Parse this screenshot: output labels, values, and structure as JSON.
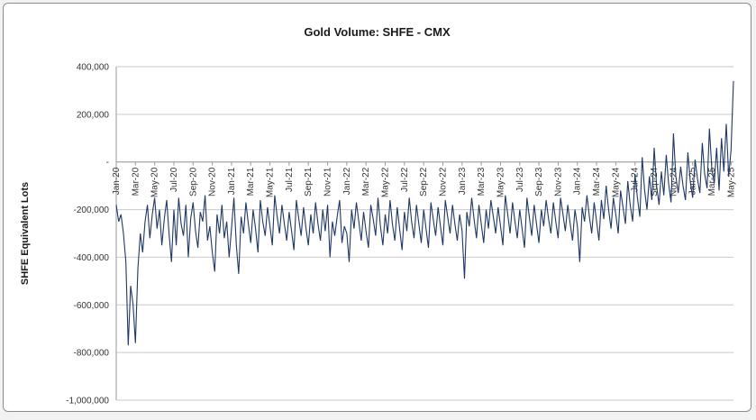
{
  "chart_data": {
    "type": "line",
    "title": "Gold Volume: SHFE - CMX",
    "xlabel": "",
    "ylabel": "SHFE Equivalent Lots",
    "ylim": [
      -1000000,
      400000
    ],
    "y_tick_interval": 200000,
    "y_tick_labels": [
      "400,000",
      "200,000",
      "-",
      "-200,000",
      "-400,000",
      "-600,000",
      "-800,000",
      "-1,000,000"
    ],
    "x_tick_labels": [
      "Jan-20",
      "Mar-20",
      "May-20",
      "Jul-20",
      "Sep-20",
      "Nov-20",
      "Jan-21",
      "Mar-21",
      "May-21",
      "Jul-21",
      "Sep-21",
      "Nov-21",
      "Jan-22",
      "Mar-22",
      "May-22",
      "Jul-22",
      "Sep-22",
      "Nov-22",
      "Jan-23",
      "Mar-23",
      "May-23",
      "Jul-23",
      "Sep-23",
      "Nov-23",
      "Jan-24",
      "Mar-24",
      "May-24",
      "Jul-24",
      "Sep-24",
      "Nov-24",
      "Jan-25",
      "Mar-25",
      "May-25"
    ],
    "points_per_label": 8,
    "grid": true,
    "legend": false,
    "colors": {
      "line": "#1f3864",
      "grid": "#c9c9c9",
      "axis": "#9a9a9a",
      "text": "#333333"
    },
    "series": [
      {
        "name": "SHFE - CMX gold volume difference",
        "color": "#1f3864",
        "value_scale": 1000,
        "values": [
          -180,
          -250,
          -220,
          -300,
          -420,
          -770,
          -520,
          -600,
          -760,
          -450,
          -300,
          -380,
          -250,
          -180,
          -320,
          -220,
          -150,
          -280,
          -200,
          -350,
          -240,
          -160,
          -300,
          -420,
          -200,
          -350,
          -150,
          -260,
          -310,
          -180,
          -400,
          -240,
          -170,
          -290,
          -360,
          -210,
          -250,
          -140,
          -330,
          -270,
          -380,
          -460,
          -220,
          -300,
          -180,
          -320,
          -250,
          -400,
          -280,
          -150,
          -350,
          -470,
          -230,
          -300,
          -170,
          -260,
          -340,
          -200,
          -280,
          -380,
          -160,
          -250,
          -310,
          -190,
          -270,
          -350,
          -140,
          -230,
          -300,
          -180,
          -260,
          -330,
          -210,
          -290,
          -370,
          -160,
          -240,
          -310,
          -190,
          -280,
          -350,
          -220,
          -300,
          -170,
          -260,
          -330,
          -200,
          -290,
          -180,
          -400,
          -250,
          -310,
          -230,
          -160,
          -340,
          -270,
          -300,
          -420,
          -200,
          -280,
          -170,
          -250,
          -330,
          -210,
          -290,
          -360,
          -180,
          -240,
          -310,
          -150,
          -270,
          -350,
          -220,
          -300,
          -160,
          -260,
          -330,
          -190,
          -280,
          -370,
          -210,
          -290,
          -150,
          -250,
          -320,
          -180,
          -260,
          -340,
          -200,
          -280,
          -360,
          -170,
          -240,
          -310,
          -190,
          -270,
          -350,
          -160,
          -230,
          -300,
          -180,
          -260,
          -330,
          -220,
          -290,
          -490,
          -210,
          -270,
          -150,
          -240,
          -320,
          -180,
          -260,
          -340,
          -200,
          -280,
          -160,
          -230,
          -300,
          -190,
          -270,
          -350,
          -140,
          -220,
          -300,
          -170,
          -250,
          -320,
          -200,
          -280,
          -360,
          -150,
          -230,
          -310,
          -180,
          -260,
          -340,
          -200,
          -270,
          -160,
          -240,
          -300,
          -170,
          -250,
          -320,
          -150,
          -220,
          -290,
          -180,
          -260,
          -330,
          -200,
          -270,
          -420,
          -190,
          -250,
          -140,
          -230,
          -300,
          -170,
          -250,
          -330,
          -160,
          -240,
          -100,
          -200,
          -280,
          -150,
          -220,
          -300,
          -120,
          -190,
          -260,
          -80,
          -180,
          -250,
          -50,
          -150,
          -230,
          20,
          -120,
          -200,
          -60,
          -160,
          60,
          -100,
          -180,
          -40,
          -140,
          30,
          -90,
          -170,
          120,
          -60,
          -130,
          -20,
          -100,
          -160,
          40,
          -80,
          -150,
          10,
          -70,
          -130,
          80,
          -50,
          -110,
          140,
          -30,
          -90,
          60,
          -120,
          100,
          -40,
          160,
          -60,
          50,
          340
        ]
      }
    ]
  }
}
